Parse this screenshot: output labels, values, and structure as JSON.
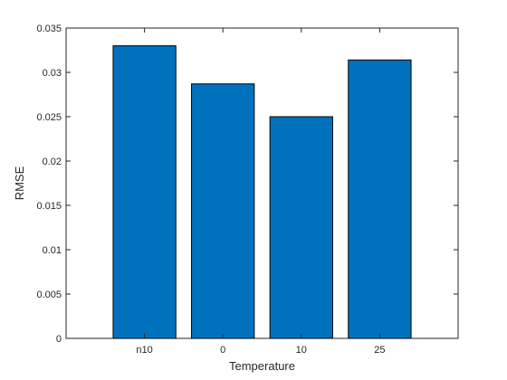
{
  "chart_data": {
    "type": "bar",
    "title": "",
    "xlabel": "Temperature",
    "ylabel": "RMSE",
    "categories": [
      "n10",
      "0",
      "10",
      "25"
    ],
    "values": [
      0.033,
      0.0287,
      0.025,
      0.0314
    ],
    "ylim": [
      0,
      0.035
    ],
    "yticks": [
      0,
      0.005,
      0.01,
      0.015,
      0.02,
      0.025,
      0.03,
      0.035
    ],
    "ytick_labels": [
      "0",
      "0.005",
      "0.01",
      "0.015",
      "0.02",
      "0.025",
      "0.03",
      "0.035"
    ],
    "grid": false,
    "legend": "none",
    "bar_color": "#0072BD",
    "bar_edge_color": "#000000"
  }
}
